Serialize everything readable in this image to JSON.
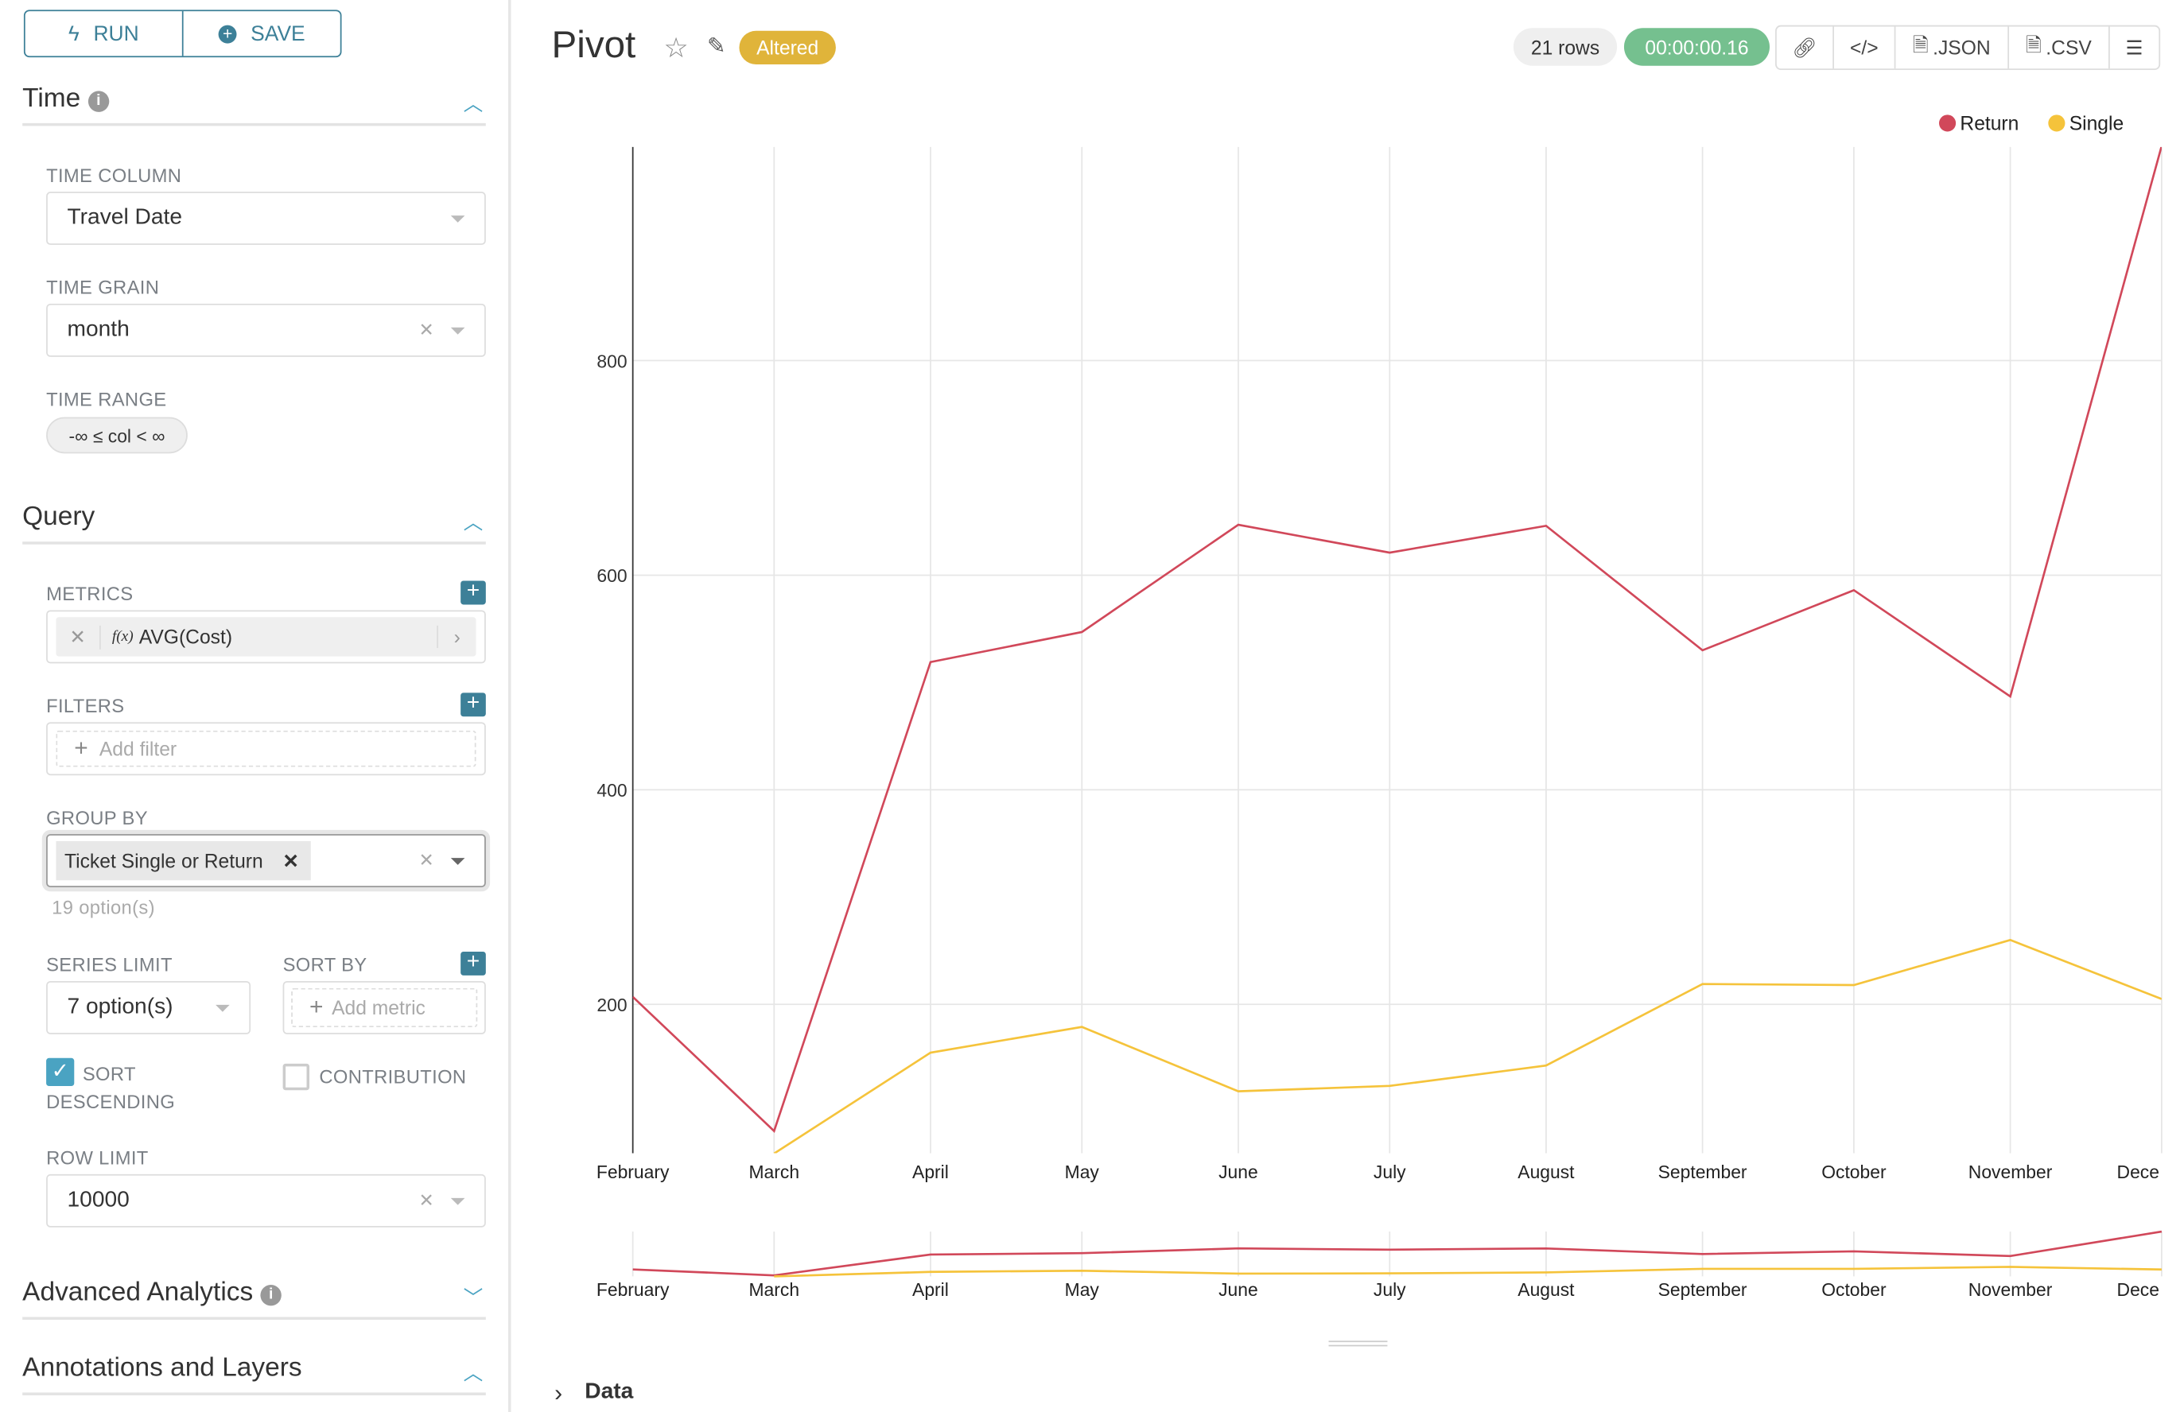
{
  "sidebar": {
    "run_label": "RUN",
    "save_label": "SAVE",
    "time": {
      "title": "Time",
      "time_column_label": "TIME COLUMN",
      "time_column_value": "Travel Date",
      "time_grain_label": "TIME GRAIN",
      "time_grain_value": "month",
      "time_range_label": "TIME RANGE",
      "time_range_value": "-∞ ≤ col < ∞"
    },
    "query": {
      "title": "Query",
      "metrics_label": "METRICS",
      "metric_value": "AVG(Cost)",
      "metric_prefix": "f(x)",
      "filters_label": "FILTERS",
      "add_filter": "Add filter",
      "group_by_label": "GROUP BY",
      "group_by_value": "Ticket Single or Return",
      "group_by_hint": "19 option(s)",
      "series_limit_label": "SERIES LIMIT",
      "series_limit_value": "7 option(s)",
      "sort_by_label": "SORT BY",
      "add_metric": "Add metric",
      "sort_desc_label": "SORT DESCENDING",
      "sort_desc_checked": true,
      "contribution_label": "CONTRIBUTION",
      "contribution_checked": false,
      "row_limit_label": "ROW LIMIT",
      "row_limit_value": "10000"
    },
    "advanced_title": "Advanced Analytics",
    "annotations_title": "Annotations and Layers"
  },
  "header": {
    "title": "Pivot",
    "status_badge": "Altered",
    "rows": "21 rows",
    "timer": "00:00:00.16",
    "json_label": ".JSON",
    "csv_label": ".CSV"
  },
  "data_section": {
    "label": "Data"
  },
  "colors": {
    "accent": "#3d8098",
    "return": "#d1485a",
    "single": "#f5c33b",
    "timer": "#75c08f",
    "altered": "#e0b43a"
  },
  "chart_data": {
    "type": "line",
    "categories": [
      "February",
      "March",
      "April",
      "May",
      "June",
      "July",
      "August",
      "September",
      "October",
      "November",
      "December"
    ],
    "tick_labels": [
      "February",
      "March",
      "April",
      "May",
      "June",
      "July",
      "August",
      "September",
      "October",
      "November",
      "Dece"
    ],
    "y_ticks": [
      200,
      400,
      600,
      800
    ],
    "ylim": [
      61,
      1000
    ],
    "grid": true,
    "legend": "top-right",
    "series": [
      {
        "name": "Return",
        "color": "#d1485a",
        "values": [
          207,
          82,
          519,
          547,
          647,
          621,
          646,
          530,
          586,
          487,
          1000
        ]
      },
      {
        "name": "Single",
        "color": "#f5c33b",
        "values": [
          null,
          61,
          155,
          179,
          119,
          124,
          143,
          219,
          218,
          260,
          205
        ]
      }
    ]
  }
}
